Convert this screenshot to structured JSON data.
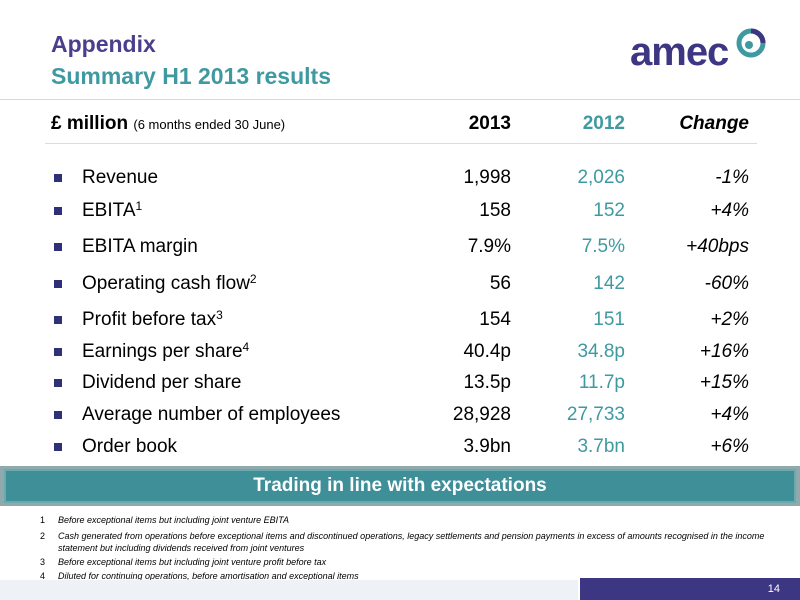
{
  "title": {
    "line1": "Appendix",
    "line2": "Summary H1 2013 results"
  },
  "logo": {
    "text": "amec"
  },
  "header": {
    "label": "£ million",
    "sublabel": "(6 months ended 30 June)",
    "col_2013": "2013",
    "col_2012": "2012",
    "col_change": "Change"
  },
  "rows": [
    {
      "label": "Revenue",
      "sup": "",
      "v2013": "1,998",
      "v2012": "2,026",
      "change": "-1%"
    },
    {
      "label": "EBITA",
      "sup": "1",
      "v2013": "158",
      "v2012": "152",
      "change": "+4%"
    },
    {
      "label": "EBITA margin",
      "sup": "",
      "v2013": "7.9%",
      "v2012": "7.5%",
      "change": "+40bps"
    },
    {
      "label": "Operating cash flow",
      "sup": "2",
      "v2013": "56",
      "v2012": "142",
      "change": "-60%"
    },
    {
      "label": "Profit before tax",
      "sup": "3",
      "v2013": "154",
      "v2012": "151",
      "change": "+2%"
    },
    {
      "label": "Earnings per share",
      "sup": "4",
      "v2013": "40.4p",
      "v2012": "34.8p",
      "change": "+16%"
    },
    {
      "label": "Dividend per share",
      "sup": "",
      "v2013": "13.5p",
      "v2012": "11.7p",
      "change": "+15%"
    },
    {
      "label": "Average number of employees",
      "sup": "",
      "v2013": "28,928",
      "v2012": "27,733",
      "change": "+4%"
    },
    {
      "label": "Order book",
      "sup": "",
      "v2013": "3.9bn",
      "v2012": "3.7bn",
      "change": "+6%"
    }
  ],
  "banner": "Trading in line with expectations",
  "footnotes": [
    {
      "n": "1",
      "text": "Before exceptional items but including joint venture EBITA"
    },
    {
      "n": "2",
      "text": "Cash generated from operations before exceptional items and discontinued operations, legacy settlements and pension payments in excess of amounts recognised in the income statement but including dividends received from joint ventures"
    },
    {
      "n": "3",
      "text": "Before exceptional items but including joint venture profit before tax"
    },
    {
      "n": "4",
      "text": "Diluted for continuing operations, before amortisation and exceptional items"
    }
  ],
  "page_number": "14",
  "colors": {
    "title_purple": "#4a3f8c",
    "title_teal": "#3e9aa0",
    "banner": "#3e8f98",
    "footer": "#3d3682"
  }
}
